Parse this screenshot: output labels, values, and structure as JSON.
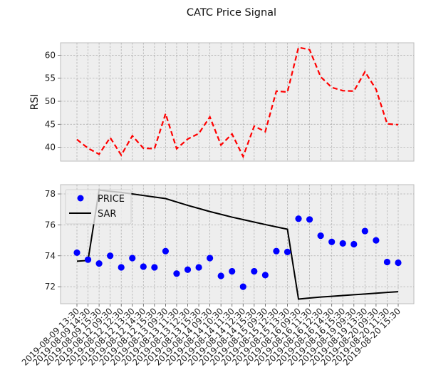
{
  "figure": {
    "title": "CATC Price Signal"
  },
  "chart_data": [
    {
      "type": "line",
      "ylabel": "RSI",
      "ylim": [
        37,
        62.7
      ],
      "yticks": [
        40,
        45,
        50,
        55,
        60
      ],
      "grid": true,
      "series": [
        {
          "name": "RSI",
          "color": "#ff0000",
          "style": "dashed",
          "values": [
            41.7,
            39.8,
            38.5,
            42.1,
            38.3,
            42.5,
            39.8,
            39.7,
            47.3,
            39.7,
            41.8,
            43.0,
            46.6,
            40.5,
            42.9,
            38.0,
            44.6,
            43.4,
            52.2,
            52.0,
            61.7,
            61.2,
            55.3,
            53.0,
            52.3,
            52.2,
            56.4,
            52.6,
            45.1,
            44.9
          ]
        }
      ]
    },
    {
      "type": "line",
      "ylim": [
        70.9,
        78.6
      ],
      "yticks": [
        72,
        74,
        76,
        78
      ],
      "grid": true,
      "legend_position": "top-left",
      "categories": [
        "2019-08-09 13:30",
        "2019-08-09 14:30",
        "2019-08-09 15:30",
        "2019-08-12 09:30",
        "2019-08-12 12:30",
        "2019-08-12 13:30",
        "2019-08-12 14:30",
        "2019-08-12 15:30",
        "2019-08-13 09:30",
        "2019-08-13 11:30",
        "2019-08-13 12:30",
        "2019-08-13 15:30",
        "2019-08-14 09:30",
        "2019-08-14 10:30",
        "2019-08-14 11:30",
        "2019-08-14 12:30",
        "2019-08-14 15:30",
        "2019-08-15 09:30",
        "2019-08-15 12:30",
        "2019-08-15 13:30",
        "2019-08-16 09:30",
        "2019-08-16 11:30",
        "2019-08-16 12:30",
        "2019-08-16 14:30",
        "2019-08-16 15:30",
        "2019-08-19 09:30",
        "2019-08-19 13:30",
        "2019-08-20 09:30",
        "2019-08-20 11:30",
        "2019-08-20 15:30"
      ],
      "series": [
        {
          "name": "PRICE",
          "marker": "circle",
          "color": "#0000ff",
          "values": [
            74.2,
            73.75,
            73.5,
            74.0,
            73.25,
            73.85,
            73.3,
            73.25,
            74.3,
            72.85,
            73.1,
            73.25,
            73.85,
            72.7,
            73.0,
            72.0,
            73.0,
            72.75,
            74.3,
            74.25,
            76.4,
            76.35,
            75.3,
            74.9,
            74.8,
            74.75,
            75.6,
            75.0,
            73.6,
            73.55
          ]
        },
        {
          "name": "SAR",
          "color": "#000000",
          "style": "solid",
          "values": [
            73.65,
            73.7,
            78.25,
            78.17,
            78.1,
            78.0,
            77.9,
            77.8,
            77.7,
            77.48,
            77.26,
            77.06,
            76.86,
            76.68,
            76.5,
            76.34,
            76.18,
            76.02,
            75.87,
            75.72,
            71.2,
            71.27,
            71.33,
            71.38,
            71.43,
            71.48,
            71.53,
            71.58,
            71.63,
            71.68
          ]
        }
      ]
    }
  ]
}
